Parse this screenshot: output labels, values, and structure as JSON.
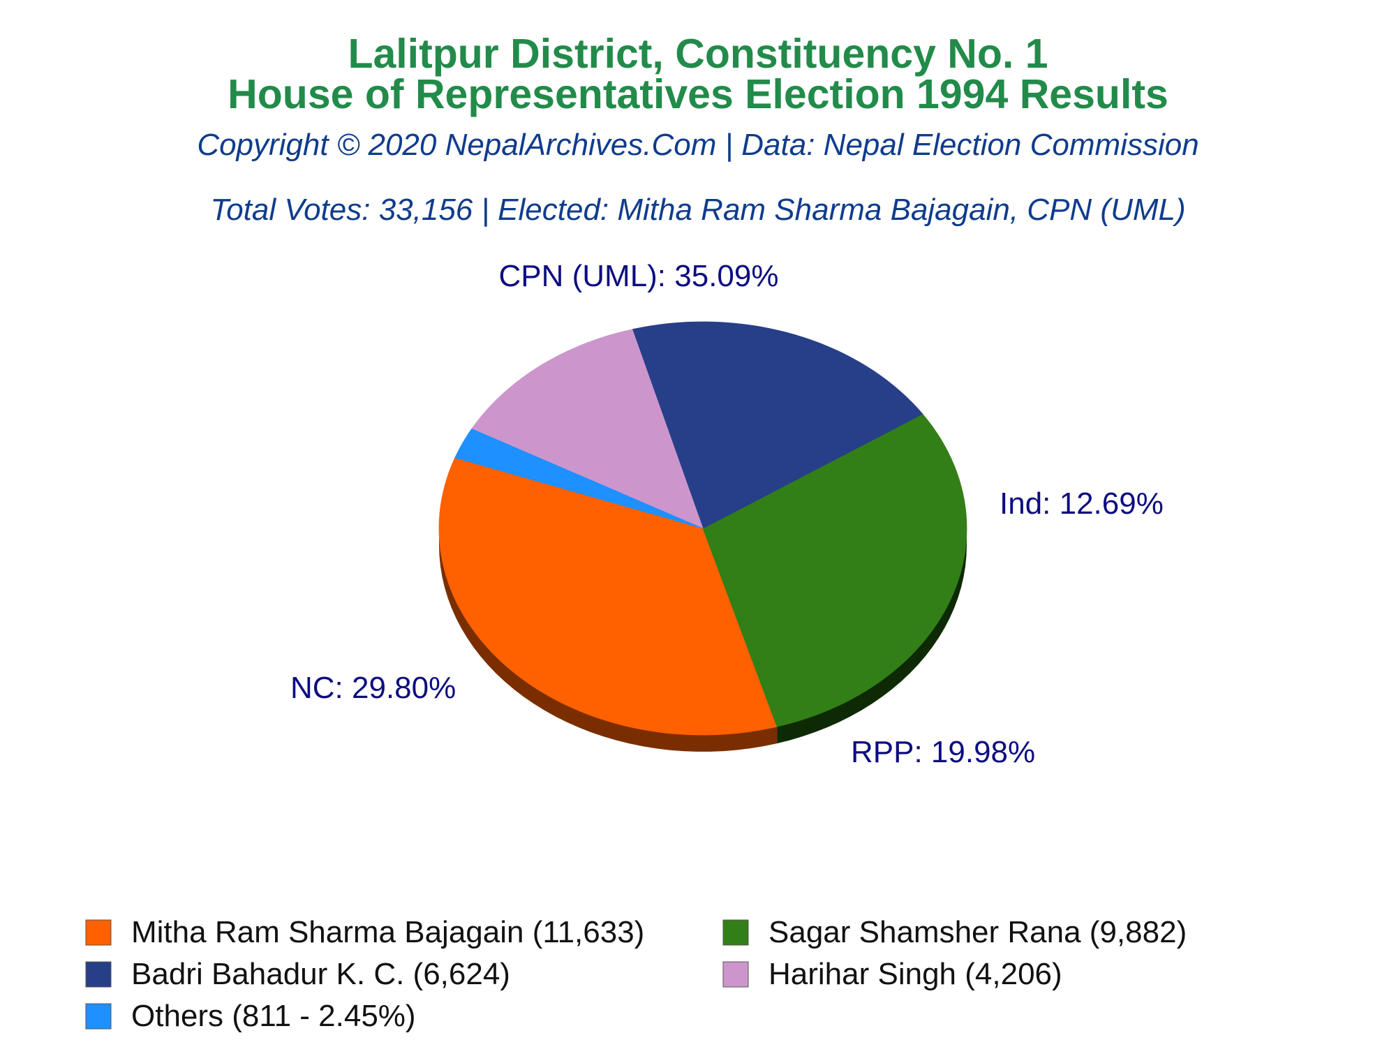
{
  "header": {
    "title_line1": "Lalitpur District, Constituency No. 1",
    "title_line2": "House of Representatives Election 1994 Results",
    "copyright": "Copyright © 2020 NepalArchives.Com | Data: Nepal Election Commission",
    "summary": "Total Votes: 33,156 | Elected: Mitha Ram Sharma Bajagain, CPN (UML)"
  },
  "colors": {
    "title": "#228b4a",
    "subtitle": "#0f3c8c",
    "slice_label": "#0d0d80"
  },
  "chart_data": {
    "type": "pie",
    "total_votes": 33156,
    "slices": [
      {
        "party": "CPN (UML)",
        "candidate": "Mitha Ram Sharma Bajagain",
        "votes": 11633,
        "percent": 35.09,
        "label": "CPN (UML): 35.09%",
        "legend": "Mitha Ram Sharma Bajagain (11,633)",
        "color": "#ff6000",
        "side_color": "#7a2e00"
      },
      {
        "party": "NC",
        "candidate": "Sagar Shamsher Rana",
        "votes": 9882,
        "percent": 29.8,
        "label": "NC: 29.80%",
        "legend": "Sagar Shamsher Rana (9,882)",
        "color": "#337f17",
        "side_color": "#0d2a05"
      },
      {
        "party": "RPP",
        "candidate": "Badri Bahadur K. C.",
        "votes": 6624,
        "percent": 19.98,
        "label": "RPP: 19.98%",
        "legend": "Badri Bahadur K. C. (6,624)",
        "color": "#263f88",
        "side_color": "#0a0a3a"
      },
      {
        "party": "Ind",
        "candidate": "Harihar Singh",
        "votes": 4206,
        "percent": 12.69,
        "label": "Ind: 12.69%",
        "legend": "Harihar Singh (4,206)",
        "color": "#cc96cc",
        "side_color": "#6a3d6a"
      },
      {
        "party": "Others",
        "candidate": "Others",
        "votes": 811,
        "percent": 2.45,
        "label": "",
        "legend": "Others (811 - 2.45%)",
        "color": "#1e90ff",
        "side_color": "#0b3f7a"
      }
    ]
  }
}
